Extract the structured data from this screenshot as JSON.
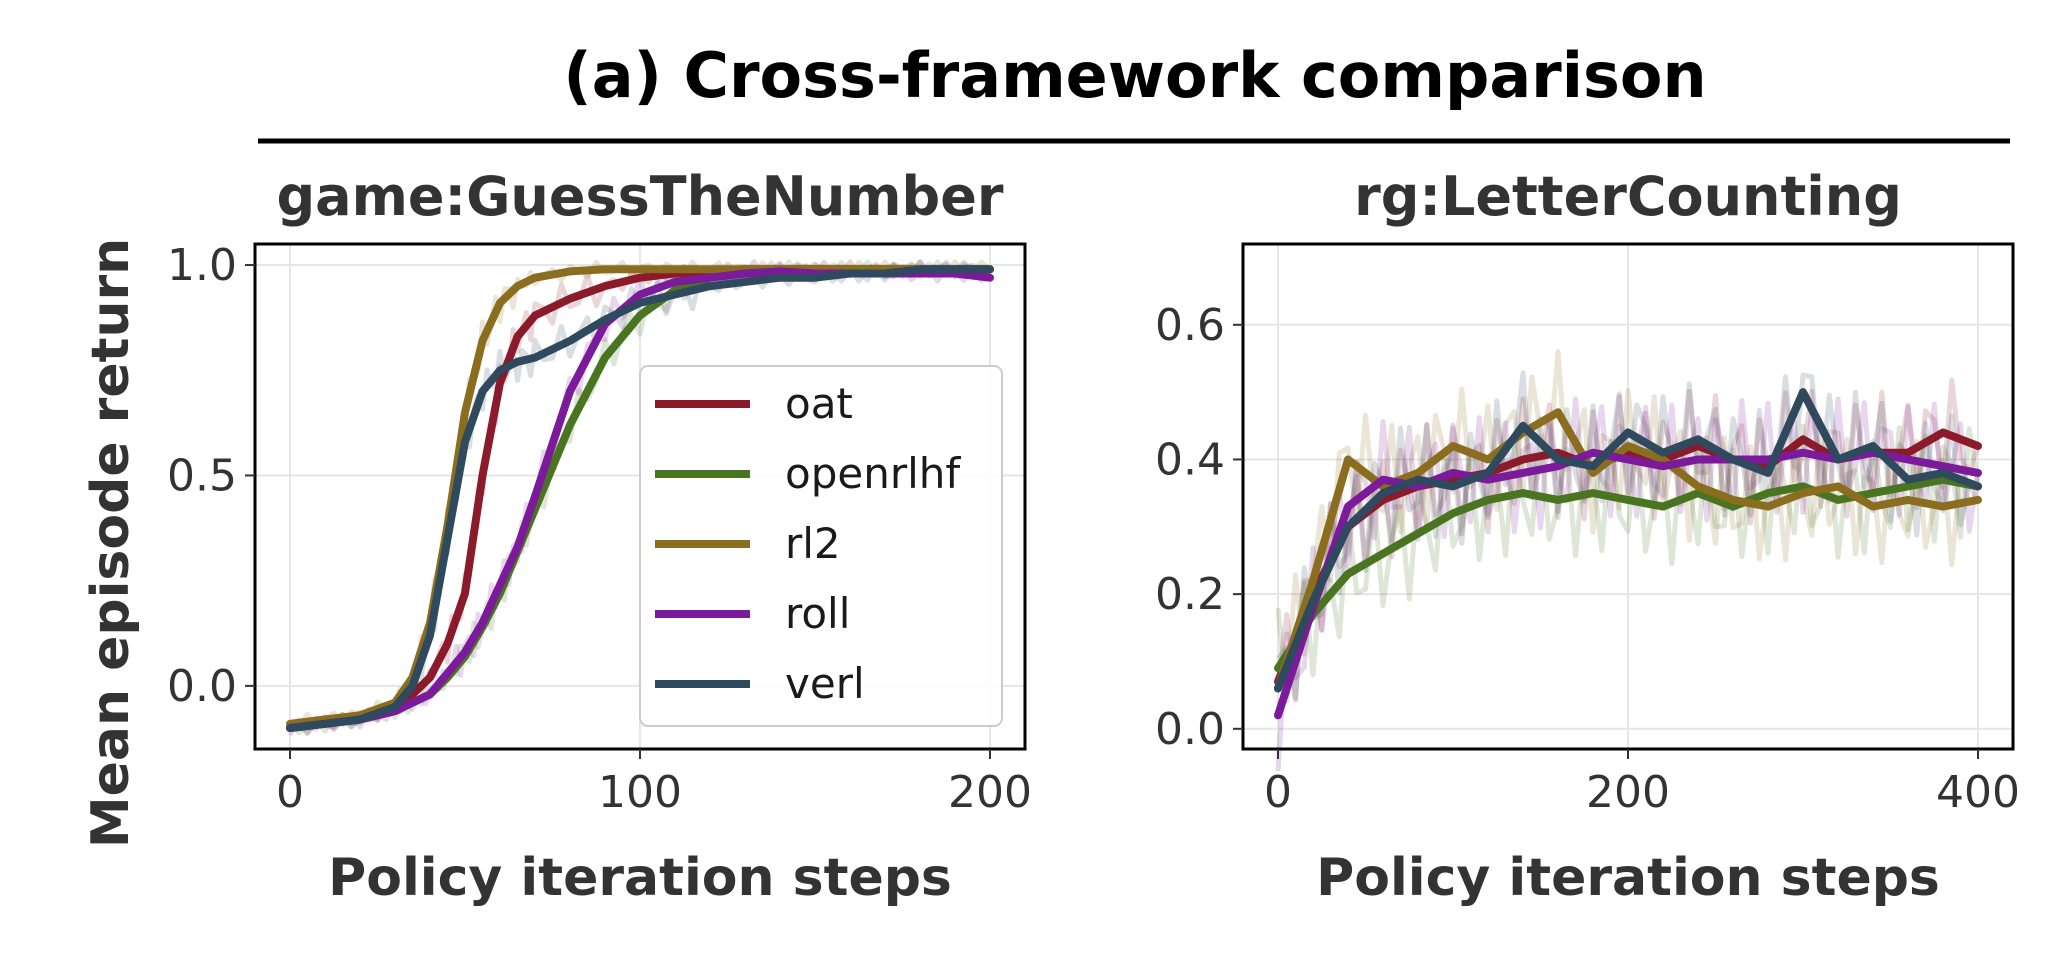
{
  "figure_title": "(a) Cross-framework comparison",
  "shared_ylabel": "Mean episode return",
  "series_colors": {
    "oat": "#8b1a2b",
    "openrlhf": "#4a7520",
    "rl2": "#8a6d1e",
    "roll": "#7b1a9a",
    "verl": "#2f4a5e"
  },
  "legend": [
    "oat",
    "openrlhf",
    "rl2",
    "roll",
    "verl"
  ],
  "chart_data": [
    {
      "type": "line",
      "title": "game:GuessTheNumber",
      "xlabel": "Policy iteration steps",
      "ylabel": "Mean episode return",
      "xlim": [
        -10,
        210
      ],
      "ylim": [
        -0.15,
        1.05
      ],
      "xticks": [
        "0",
        "100",
        "200"
      ],
      "yticks": [
        "0.0",
        "0.5",
        "1.0"
      ],
      "legend_position": "center-right",
      "x": [
        0,
        10,
        20,
        30,
        35,
        40,
        45,
        50,
        55,
        60,
        65,
        70,
        80,
        90,
        100,
        110,
        120,
        130,
        140,
        150,
        160,
        170,
        180,
        190,
        200
      ],
      "series": [
        {
          "name": "oat",
          "values": [
            -0.1,
            -0.09,
            -0.08,
            -0.05,
            -0.02,
            0.02,
            0.1,
            0.22,
            0.5,
            0.72,
            0.83,
            0.88,
            0.92,
            0.95,
            0.97,
            0.98,
            0.985,
            0.99,
            0.99,
            0.99,
            0.99,
            0.99,
            0.99,
            0.99,
            0.99
          ]
        },
        {
          "name": "openrlhf",
          "values": [
            -0.1,
            -0.09,
            -0.08,
            -0.06,
            -0.04,
            -0.02,
            0.02,
            0.07,
            0.14,
            0.22,
            0.32,
            0.42,
            0.62,
            0.78,
            0.88,
            0.94,
            0.97,
            0.98,
            0.99,
            0.99,
            0.99,
            0.99,
            0.99,
            0.99,
            0.99
          ]
        },
        {
          "name": "rl2",
          "values": [
            -0.09,
            -0.08,
            -0.07,
            -0.04,
            0.02,
            0.15,
            0.38,
            0.65,
            0.82,
            0.91,
            0.95,
            0.97,
            0.985,
            0.99,
            0.99,
            0.99,
            0.99,
            0.99,
            0.99,
            0.99,
            0.99,
            0.99,
            0.99,
            0.99,
            0.99
          ]
        },
        {
          "name": "roll",
          "values": [
            -0.1,
            -0.09,
            -0.08,
            -0.06,
            -0.04,
            -0.02,
            0.03,
            0.08,
            0.15,
            0.24,
            0.33,
            0.45,
            0.7,
            0.86,
            0.93,
            0.96,
            0.97,
            0.98,
            0.985,
            0.98,
            0.98,
            0.98,
            0.98,
            0.98,
            0.97
          ]
        },
        {
          "name": "verl",
          "values": [
            -0.1,
            -0.09,
            -0.08,
            -0.05,
            0.0,
            0.12,
            0.35,
            0.58,
            0.7,
            0.75,
            0.77,
            0.78,
            0.82,
            0.87,
            0.91,
            0.93,
            0.95,
            0.96,
            0.97,
            0.97,
            0.98,
            0.98,
            0.99,
            0.99,
            0.99
          ]
        }
      ]
    },
    {
      "type": "line",
      "title": "rg:LetterCounting",
      "xlabel": "Policy iteration steps",
      "ylabel": "",
      "xlim": [
        -20,
        420
      ],
      "ylim": [
        -0.03,
        0.72
      ],
      "xticks": [
        "0",
        "200",
        "400"
      ],
      "yticks": [
        "0.0",
        "0.2",
        "0.4",
        "0.6"
      ],
      "x": [
        0,
        20,
        40,
        60,
        80,
        100,
        120,
        140,
        160,
        180,
        200,
        220,
        240,
        260,
        280,
        300,
        320,
        340,
        360,
        380,
        400
      ],
      "series": [
        {
          "name": "oat",
          "values": [
            0.07,
            0.2,
            0.3,
            0.34,
            0.36,
            0.37,
            0.38,
            0.4,
            0.41,
            0.39,
            0.41,
            0.4,
            0.42,
            0.4,
            0.39,
            0.43,
            0.4,
            0.41,
            0.41,
            0.44,
            0.42
          ]
        },
        {
          "name": "openrlhf",
          "values": [
            0.09,
            0.17,
            0.23,
            0.26,
            0.29,
            0.32,
            0.34,
            0.35,
            0.34,
            0.35,
            0.34,
            0.33,
            0.35,
            0.33,
            0.35,
            0.36,
            0.34,
            0.35,
            0.36,
            0.37,
            0.36
          ]
        },
        {
          "name": "rl2",
          "values": [
            0.06,
            0.22,
            0.4,
            0.36,
            0.38,
            0.42,
            0.4,
            0.44,
            0.47,
            0.38,
            0.42,
            0.4,
            0.36,
            0.34,
            0.33,
            0.35,
            0.36,
            0.33,
            0.34,
            0.33,
            0.34
          ]
        },
        {
          "name": "roll",
          "values": [
            0.02,
            0.18,
            0.33,
            0.37,
            0.36,
            0.38,
            0.37,
            0.38,
            0.39,
            0.41,
            0.4,
            0.39,
            0.4,
            0.4,
            0.4,
            0.41,
            0.4,
            0.41,
            0.4,
            0.39,
            0.38
          ]
        },
        {
          "name": "verl",
          "values": [
            0.06,
            0.19,
            0.3,
            0.35,
            0.37,
            0.36,
            0.38,
            0.45,
            0.4,
            0.39,
            0.44,
            0.41,
            0.43,
            0.4,
            0.38,
            0.5,
            0.4,
            0.42,
            0.37,
            0.38,
            0.36
          ]
        }
      ]
    }
  ]
}
